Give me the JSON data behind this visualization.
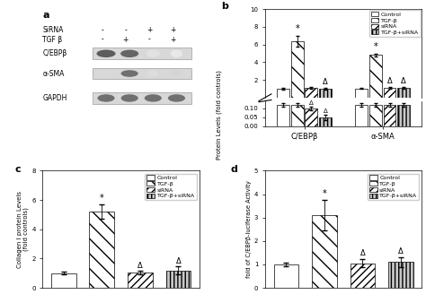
{
  "panel_b": {
    "groups": [
      "C/EBPβ",
      "α-SMA"
    ],
    "categories": [
      "Control",
      "TGF-β",
      "siRNA",
      "TGF-β+siRNA"
    ],
    "upper_values": [
      [
        1.0,
        6.4,
        1.05,
        1.0
      ],
      [
        1.0,
        4.8,
        1.1,
        1.1
      ]
    ],
    "upper_errors": [
      [
        0.1,
        0.6,
        0.1,
        0.1
      ],
      [
        0.05,
        0.15,
        0.1,
        0.1
      ]
    ],
    "lower_values": [
      [
        0.12,
        0.12,
        0.1,
        0.05
      ],
      [
        0.12,
        0.12,
        0.12,
        0.12
      ]
    ],
    "lower_errors": [
      [
        0.01,
        0.01,
        0.01,
        0.015
      ],
      [
        0.01,
        0.01,
        0.01,
        0.01
      ]
    ],
    "ylim_upper": [
      0,
      10
    ],
    "ylim_lower": [
      0.0,
      0.14
    ],
    "ylabel": "Protein Levels (fold controls)"
  },
  "panel_c": {
    "values": [
      1.0,
      5.2,
      1.05,
      1.2
    ],
    "errors": [
      0.1,
      0.5,
      0.1,
      0.25
    ],
    "ylim": [
      0,
      8
    ],
    "yticks": [
      0,
      2,
      4,
      6,
      8
    ],
    "ylabel": "Collagen I protein Levels\n(fold controls)"
  },
  "panel_d": {
    "values": [
      1.0,
      3.1,
      1.05,
      1.1
    ],
    "errors": [
      0.08,
      0.65,
      0.18,
      0.22
    ],
    "ylim": [
      0,
      5
    ],
    "yticks": [
      0,
      1,
      2,
      3,
      4,
      5
    ],
    "ylabel": "fold of C/EBPβ-luciferase Activity"
  },
  "legend_labels": [
    "Control",
    "TGF-β",
    "siRNA",
    "TGF-β+siRNA"
  ],
  "hatches": [
    "",
    "\\\\",
    "////",
    "||||"
  ],
  "facecolors": [
    "white",
    "white",
    "white",
    "#c8c8c8"
  ],
  "bar_edge_color": "black"
}
